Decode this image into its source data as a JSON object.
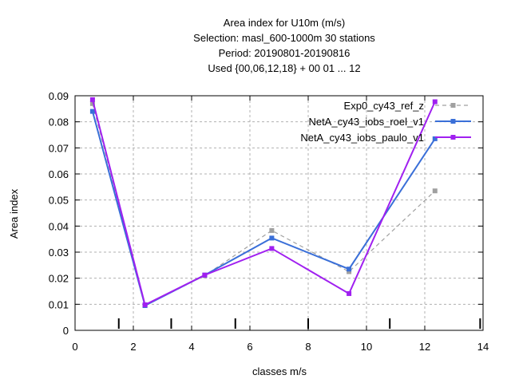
{
  "chart_data": {
    "type": "line",
    "title_lines": [
      "Area index  for U10m (m/s)",
      "Selection: masl_600-1000m     30 stations",
      "Period: 20190801-20190816",
      "Used {00,06,12,18} + 00 01 ... 12"
    ],
    "xlabel": "classes m/s",
    "ylabel": "Area index",
    "xlim": [
      0,
      14
    ],
    "ylim": [
      0,
      0.09
    ],
    "xticks": [
      "0",
      "2",
      "4",
      "6",
      "8",
      "10",
      "12",
      "14"
    ],
    "yticks": [
      "0",
      "0.01",
      "0.02",
      "0.03",
      "0.04",
      "0.05",
      "0.06",
      "0.07",
      "0.08",
      "0.09"
    ],
    "grid": true,
    "legend_position": "top-right",
    "class_boundary_marks": [
      1.5,
      3.3,
      5.5,
      8.0,
      10.8,
      13.9
    ],
    "x": [
      0.6,
      2.4,
      4.45,
      6.75,
      9.4,
      12.35
    ],
    "series": [
      {
        "name": "Exp0_cy43_ref_z",
        "color": "#a0a0a0",
        "dashed": true,
        "values": [
          0.087,
          0.0095,
          0.021,
          0.0383,
          0.0225,
          0.0535
        ]
      },
      {
        "name": "NetA_cy43_iobs_roel_v1",
        "color": "#3a6fd8",
        "dashed": false,
        "values": [
          0.084,
          0.0095,
          0.0212,
          0.0354,
          0.0235,
          0.0735
        ]
      },
      {
        "name": "NetA_cy43_iobs_paulo_v1",
        "color": "#a020f0",
        "dashed": false,
        "values": [
          0.0885,
          0.0098,
          0.0212,
          0.0314,
          0.0141,
          0.0877
        ]
      }
    ]
  }
}
